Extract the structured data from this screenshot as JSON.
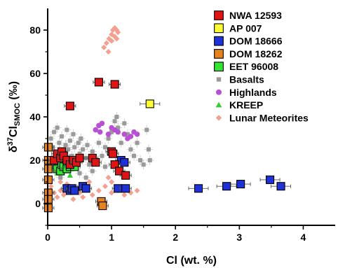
{
  "chart_data": {
    "type": "scatter",
    "xlabel": "Cl (wt. %)",
    "ylabel_main": "δ",
    "ylabel_sup": "37",
    "ylabel_mid": "Cl",
    "ylabel_sub": "SMOC",
    "ylabel_tail": " (‰)",
    "xlim": [
      0,
      4.5
    ],
    "ylim": [
      -10,
      90
    ],
    "xticks": [
      0,
      1,
      2,
      3,
      4
    ],
    "yticks": [
      0,
      20,
      40,
      60,
      80
    ],
    "legend_position": "top-right",
    "series": [
      {
        "name": "Basalts",
        "marker": "small-square",
        "color": "#9a9a9a",
        "errorbars": true,
        "points": [
          [
            0.05,
            30
          ],
          [
            0.08,
            26
          ],
          [
            0.1,
            33
          ],
          [
            0.12,
            22
          ],
          [
            0.15,
            35
          ],
          [
            0.18,
            28
          ],
          [
            0.2,
            24
          ],
          [
            0.22,
            31
          ],
          [
            0.25,
            20
          ],
          [
            0.28,
            27
          ],
          [
            0.3,
            34
          ],
          [
            0.32,
            25
          ],
          [
            0.35,
            29
          ],
          [
            0.38,
            22
          ],
          [
            0.4,
            32
          ],
          [
            0.42,
            26
          ],
          [
            0.45,
            19
          ],
          [
            0.48,
            28
          ],
          [
            0.5,
            23
          ],
          [
            0.52,
            30
          ],
          [
            0.55,
            25
          ],
          [
            0.6,
            21
          ],
          [
            0.62,
            27
          ],
          [
            0.65,
            18
          ],
          [
            0.7,
            24
          ],
          [
            0.75,
            20
          ],
          [
            0.8,
            28
          ],
          [
            0.85,
            22
          ],
          [
            0.9,
            26
          ],
          [
            0.95,
            30
          ],
          [
            1.0,
            33
          ],
          [
            1.05,
            38
          ],
          [
            1.08,
            40
          ],
          [
            1.1,
            35
          ],
          [
            1.15,
            28
          ],
          [
            1.2,
            37
          ],
          [
            1.25,
            32
          ],
          [
            1.3,
            25
          ],
          [
            1.35,
            22
          ],
          [
            1.4,
            28
          ],
          [
            1.45,
            20
          ],
          [
            1.5,
            18
          ],
          [
            1.55,
            34
          ],
          [
            1.58,
            25
          ],
          [
            1.6,
            20
          ],
          [
            0.3,
            16
          ],
          [
            0.5,
            14
          ],
          [
            0.6,
            12
          ],
          [
            0.7,
            15
          ],
          [
            0.9,
            17
          ],
          [
            0.2,
            12
          ],
          [
            0.1,
            18
          ]
        ]
      },
      {
        "name": "Highlands",
        "marker": "circle",
        "color": "#b84fd4",
        "points": [
          [
            0.75,
            34
          ],
          [
            0.8,
            36
          ],
          [
            0.82,
            33
          ],
          [
            0.85,
            37
          ],
          [
            1.0,
            35
          ],
          [
            1.05,
            34
          ],
          [
            1.1,
            33
          ],
          [
            1.2,
            32
          ],
          [
            1.25,
            30
          ],
          [
            1.3,
            31
          ],
          [
            1.35,
            33
          ],
          [
            1.4,
            32
          ],
          [
            0.95,
            32
          ]
        ]
      },
      {
        "name": "KREEP",
        "marker": "triangle",
        "color": "#33cc33",
        "points": [
          [
            0.05,
            17
          ],
          [
            0.1,
            19
          ],
          [
            0.15,
            14
          ],
          [
            0.2,
            16
          ],
          [
            0.25,
            18
          ],
          [
            0.3,
            15
          ],
          [
            0.35,
            13
          ],
          [
            0.4,
            17
          ]
        ]
      },
      {
        "name": "Lunar Meteorites",
        "marker": "diamond",
        "color": "#f4a090",
        "points": [
          [
            0.88,
            72
          ],
          [
            0.92,
            74
          ],
          [
            0.96,
            76
          ],
          [
            1.0,
            78
          ],
          [
            1.02,
            80
          ],
          [
            1.05,
            81
          ],
          [
            1.08,
            80
          ],
          [
            1.1,
            79
          ],
          [
            1.0,
            75
          ],
          [
            1.05,
            77
          ],
          [
            0.95,
            70
          ],
          [
            1.08,
            76
          ],
          [
            0.02,
            12
          ],
          [
            0.05,
            8
          ],
          [
            0.1,
            5
          ],
          [
            0.15,
            3
          ],
          [
            0.2,
            6
          ],
          [
            0.25,
            4
          ],
          [
            0.3,
            9
          ],
          [
            0.5,
            5
          ],
          [
            0.55,
            3
          ],
          [
            0.6,
            7
          ],
          [
            0.7,
            4
          ],
          [
            0.8,
            6
          ],
          [
            0.9,
            8
          ],
          [
            1.0,
            5
          ],
          [
            1.1,
            6
          ],
          [
            1.2,
            4
          ],
          [
            1.3,
            5
          ],
          [
            1.4,
            6
          ],
          [
            0.4,
            2
          ],
          [
            0.65,
            10
          ],
          [
            0.95,
            12
          ],
          [
            1.0,
            10
          ],
          [
            0.2,
            10
          ],
          [
            0.05,
            2
          ]
        ]
      },
      {
        "name": "DOM 18262",
        "marker": "square",
        "color": "#e8821e",
        "points": [
          [
            0.01,
            26
          ],
          [
            0.01,
            20
          ],
          [
            0.01,
            16
          ],
          [
            0.01,
            11
          ],
          [
            0.01,
            5
          ],
          [
            0.01,
            2
          ],
          [
            0.01,
            -2
          ],
          [
            0.84,
            1
          ],
          [
            0.86,
            -1
          ]
        ]
      },
      {
        "name": "DOM 18666",
        "marker": "square",
        "color": "#1e32d8",
        "points": [
          [
            0.3,
            7
          ],
          [
            0.35,
            6
          ],
          [
            0.38,
            7
          ],
          [
            0.42,
            6
          ],
          [
            0.55,
            8
          ],
          [
            0.6,
            7
          ],
          [
            1.1,
            7
          ],
          [
            1.22,
            7
          ],
          [
            1.15,
            20
          ],
          [
            1.2,
            19
          ],
          [
            2.36,
            7
          ],
          [
            2.8,
            8
          ],
          [
            3.02,
            9
          ],
          [
            3.48,
            11
          ],
          [
            3.65,
            8
          ]
        ]
      },
      {
        "name": "EET 96008",
        "marker": "square",
        "color": "#33e633",
        "points": [
          [
            0.15,
            16
          ],
          [
            0.2,
            15
          ],
          [
            0.22,
            18
          ],
          [
            0.25,
            17
          ],
          [
            0.3,
            16
          ],
          [
            0.35,
            17
          ],
          [
            0.42,
            17
          ]
        ]
      },
      {
        "name": "AP 007",
        "marker": "square",
        "color": "#ffff33",
        "points": [
          [
            1.6,
            46
          ]
        ]
      },
      {
        "name": "NWA 12593",
        "marker": "square",
        "color": "#e01414",
        "points": [
          [
            0.1,
            20
          ],
          [
            0.15,
            23
          ],
          [
            0.2,
            21
          ],
          [
            0.22,
            24
          ],
          [
            0.25,
            22
          ],
          [
            0.3,
            20
          ],
          [
            0.35,
            18
          ],
          [
            0.4,
            20
          ],
          [
            0.45,
            19
          ],
          [
            0.5,
            21
          ],
          [
            0.7,
            21
          ],
          [
            0.75,
            19
          ],
          [
            1.0,
            24
          ],
          [
            1.02,
            23
          ],
          [
            1.05,
            18
          ],
          [
            1.12,
            15
          ],
          [
            1.22,
            13
          ],
          [
            0.35,
            45
          ],
          [
            0.8,
            56
          ],
          [
            1.05,
            55
          ]
        ]
      }
    ],
    "legend": [
      {
        "name": "NWA 12593",
        "marker": "square",
        "color": "#e01414"
      },
      {
        "name": "AP 007",
        "marker": "square",
        "color": "#ffff33"
      },
      {
        "name": "DOM 18666",
        "marker": "square",
        "color": "#1e32d8"
      },
      {
        "name": "DOM 18262",
        "marker": "square",
        "color": "#e8821e"
      },
      {
        "name": "EET 96008",
        "marker": "square",
        "color": "#33e633"
      },
      {
        "name": "Basalts",
        "marker": "small-square",
        "color": "#9a9a9a"
      },
      {
        "name": "Highlands",
        "marker": "circle",
        "color": "#b84fd4"
      },
      {
        "name": "KREEP",
        "marker": "triangle",
        "color": "#33cc33"
      },
      {
        "name": "Lunar Meteorites",
        "marker": "diamond",
        "color": "#f4a090"
      }
    ]
  }
}
